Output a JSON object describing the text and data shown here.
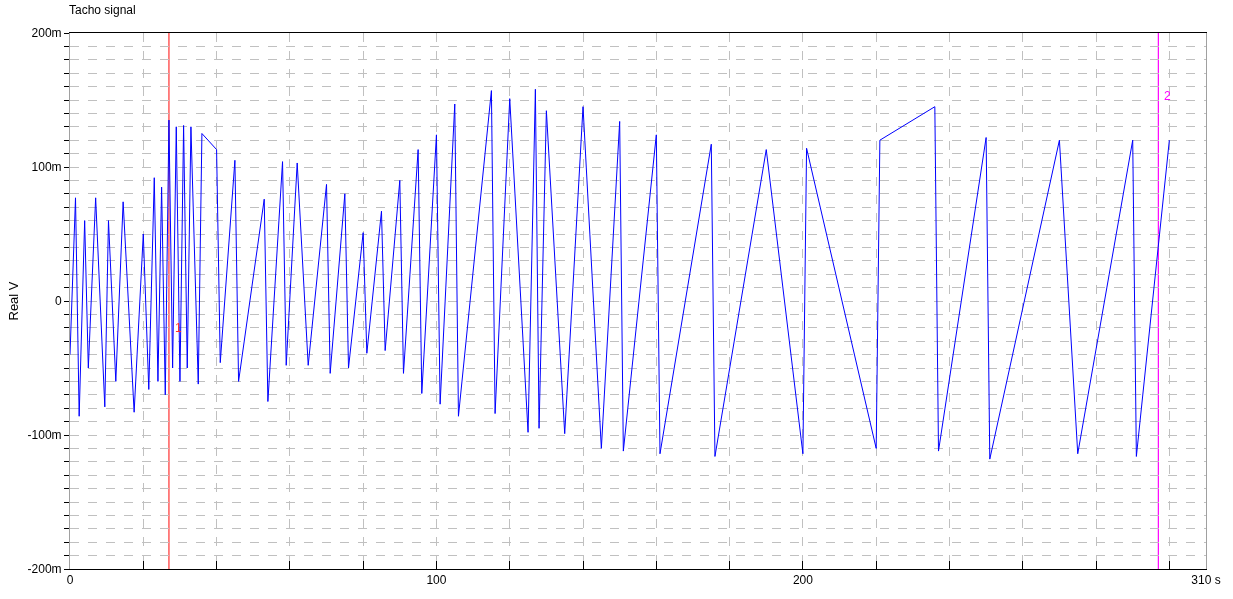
{
  "chart_data": {
    "type": "line",
    "title": "Tacho signal",
    "ylabel": "Real V",
    "series": [
      {
        "color": "#0000ff",
        "x": [
          0,
          1.5,
          2.5,
          4,
          5,
          7,
          9.5,
          10.5,
          12.5,
          14.5,
          17.5,
          20,
          21.5,
          23,
          24,
          25,
          26,
          27,
          28,
          29,
          30,
          31,
          32,
          33,
          35,
          36,
          40,
          41,
          45,
          46,
          53,
          54,
          58,
          59,
          62,
          65,
          70,
          71,
          75,
          76,
          80,
          81,
          85,
          86,
          90,
          91,
          95,
          96,
          100,
          101,
          105,
          106,
          115,
          116,
          120,
          125,
          127,
          128,
          130,
          135,
          140,
          145,
          150,
          151,
          160,
          161,
          175,
          176,
          190,
          200,
          201,
          220,
          221,
          236,
          237,
          250,
          251,
          270,
          275,
          290,
          291,
          300
        ],
        "values": [
          -40,
          77,
          -86,
          60,
          -50,
          77,
          -79,
          60,
          -60,
          74,
          -83,
          50,
          -66,
          92,
          -60,
          85,
          -70,
          135,
          -50,
          130,
          -60,
          131,
          -50,
          130,
          -62,
          125,
          113,
          -46,
          105,
          -60,
          76,
          -75,
          104,
          -48,
          103,
          -48,
          87,
          -54,
          80,
          -50,
          51,
          -39,
          67,
          -37,
          90,
          -54,
          113,
          -69,
          124,
          -77,
          147,
          -86,
          157,
          -84,
          151,
          -98,
          158,
          -95,
          142,
          -99,
          145,
          -110,
          134,
          -112,
          124,
          -114,
          117,
          -116,
          113,
          -114,
          114,
          -110,
          120,
          145,
          -112,
          122,
          -118,
          120,
          -114,
          120,
          -116,
          120
        ]
      }
    ],
    "xlim": [
      0,
      310
    ],
    "xticks": [
      0,
      {
        "value": 20,
        "label": null
      },
      {
        "value": 40,
        "label": null
      },
      {
        "value": 60,
        "label": null
      },
      {
        "value": 80,
        "label": null
      },
      100,
      {
        "value": 120,
        "label": null
      },
      {
        "value": 140,
        "label": null
      },
      {
        "value": 160,
        "label": null
      },
      {
        "value": 180,
        "label": null
      },
      200,
      {
        "value": 220,
        "label": null
      },
      {
        "value": 240,
        "label": null
      },
      {
        "value": 260,
        "label": null
      },
      {
        "value": 280,
        "label": null
      },
      {
        "value": 300,
        "label": null
      },
      {
        "value": 310,
        "label": "310 s"
      }
    ],
    "ylim": [
      -200,
      200
    ],
    "yticks": [
      {
        "value": -200,
        "label": "-200m"
      },
      {
        "value": -190,
        "label": null
      },
      {
        "value": -180,
        "label": null
      },
      {
        "value": -170,
        "label": null
      },
      {
        "value": -160,
        "label": null
      },
      {
        "value": -150,
        "label": null
      },
      {
        "value": -140,
        "label": null
      },
      {
        "value": -130,
        "label": null
      },
      {
        "value": -120,
        "label": null
      },
      {
        "value": -110,
        "label": null
      },
      {
        "value": -100,
        "label": "-100m"
      },
      {
        "value": -90,
        "label": null
      },
      {
        "value": -80,
        "label": null
      },
      {
        "value": -70,
        "label": null
      },
      {
        "value": -60,
        "label": null
      },
      {
        "value": -50,
        "label": null
      },
      {
        "value": -40,
        "label": null
      },
      {
        "value": -30,
        "label": null
      },
      {
        "value": -20,
        "label": null
      },
      {
        "value": -10,
        "label": null
      },
      0,
      {
        "value": 10,
        "label": null
      },
      {
        "value": 20,
        "label": null
      },
      {
        "value": 30,
        "label": null
      },
      {
        "value": 40,
        "label": null
      },
      {
        "value": 50,
        "label": null
      },
      {
        "value": 60,
        "label": null
      },
      {
        "value": 70,
        "label": null
      },
      {
        "value": 80,
        "label": null
      },
      {
        "value": 90,
        "label": null
      },
      {
        "value": 100,
        "label": "100m"
      },
      {
        "value": 110,
        "label": null
      },
      {
        "value": 120,
        "label": null
      },
      {
        "value": 130,
        "label": null
      },
      {
        "value": 140,
        "label": null
      },
      {
        "value": 150,
        "label": null
      },
      {
        "value": 160,
        "label": null
      },
      {
        "value": 170,
        "label": null
      },
      {
        "value": 180,
        "label": null
      },
      {
        "value": 190,
        "label": null
      },
      {
        "value": 200,
        "label": "200m"
      }
    ],
    "grid": true,
    "ref_lines": [
      {
        "axis": "x",
        "value": 27,
        "color": "#ff3030"
      },
      {
        "axis": "x",
        "value": 297,
        "color": "#ff00ff"
      }
    ],
    "annotations": [
      "1",
      "2"
    ]
  }
}
